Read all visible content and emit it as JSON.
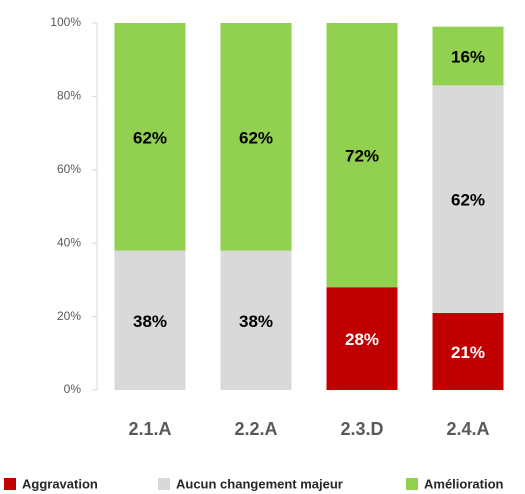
{
  "chart_data": {
    "type": "stacked_bar",
    "categories": [
      "2.1.A",
      "2.2.A",
      "2.3.D",
      "2.4.A"
    ],
    "series": [
      {
        "name": "Aggravation",
        "color": "#c00000",
        "values": [
          0,
          0,
          28,
          21
        ],
        "value_labels": [
          null,
          null,
          "28%",
          "21%"
        ]
      },
      {
        "name": "Aucun changement majeur",
        "color": "#d9d9d9",
        "values": [
          38,
          38,
          0,
          62
        ],
        "value_labels": [
          "38%",
          "38%",
          null,
          "62%"
        ]
      },
      {
        "name": "Amélioration",
        "color": "#92d050",
        "values": [
          62,
          62,
          72,
          16
        ],
        "value_labels": [
          "62%",
          "62%",
          "72%",
          "16%"
        ]
      }
    ],
    "ylim": [
      0,
      100
    ],
    "yticks": [
      {
        "value": 0,
        "label": "0%"
      },
      {
        "value": 20,
        "label": "20%"
      },
      {
        "value": 40,
        "label": "40%"
      },
      {
        "value": 60,
        "label": "60%"
      },
      {
        "value": 80,
        "label": "80%"
      },
      {
        "value": 100,
        "label": "100%"
      }
    ],
    "legend": "bottom"
  }
}
